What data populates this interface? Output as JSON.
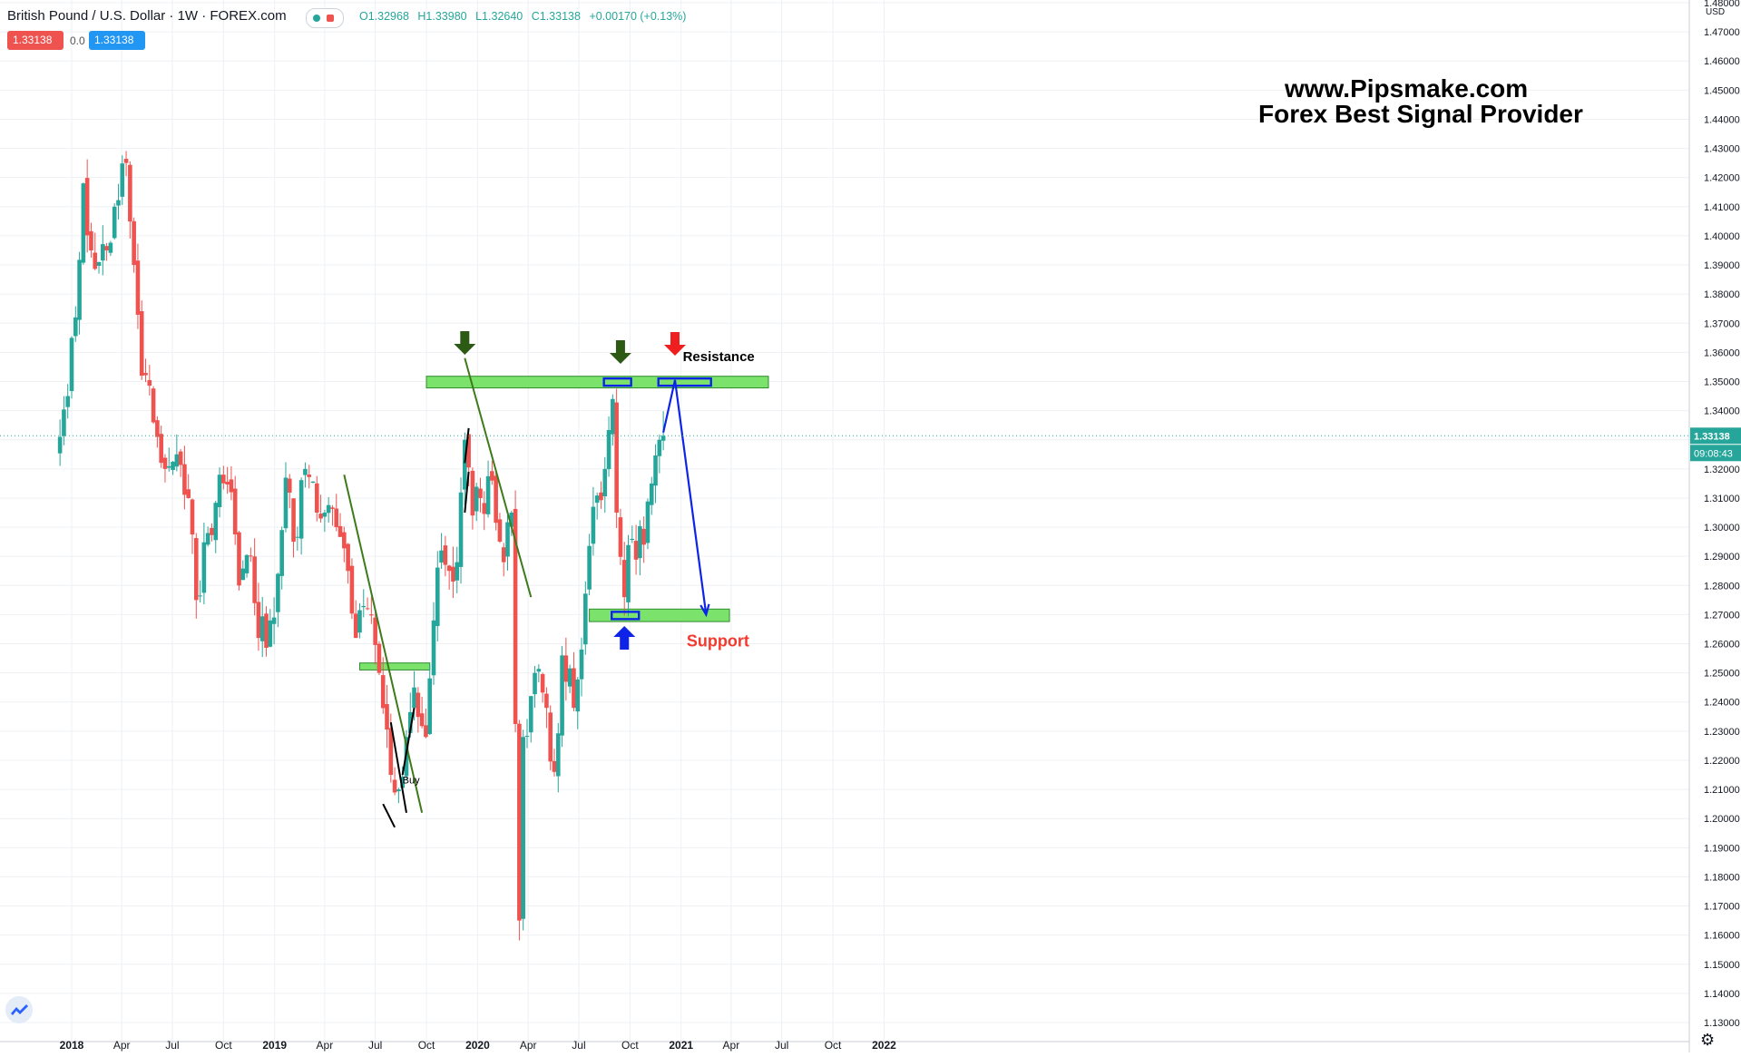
{
  "header": {
    "symbol_title": "British Pound / U.S. Dollar · 1W · FOREX.com",
    "ohlc": {
      "open": "O1.32968",
      "high": "H1.33980",
      "low": "L1.32640",
      "close": "C1.33138",
      "change": "+0.00170 (+0.13%)"
    },
    "sell_price": "1.33138",
    "spread": "0.0",
    "buy_price": "1.33138"
  },
  "overlay_text": {
    "line1": "www.Pipsmake.com",
    "line2": "Forex Best Signal Provider"
  },
  "axis": {
    "currency": "USD",
    "current_price_label": "1.33138",
    "countdown_label": "09:08:43"
  },
  "colors": {
    "up": "#26a69a",
    "down": "#ef5350",
    "zone": "#7be36b",
    "trendline": "#3d7a1a",
    "target_arrow": "#0d24e8",
    "support_text": "#f23a2f"
  },
  "icons": [
    "tradingview-logo-icon",
    "settings-gear-icon",
    "arrow-down-dark-green-icon",
    "arrow-down-red-icon",
    "arrow-up-blue-icon"
  ],
  "chart_data": {
    "type": "candlestick",
    "timeframe": "1W",
    "x_tick_labels": [
      "2018",
      "Apr",
      "Jul",
      "Oct",
      "2019",
      "Apr",
      "Jul",
      "Oct",
      "2020",
      "Apr",
      "Jul",
      "Oct",
      "2021",
      "Apr",
      "Jul",
      "Oct",
      "2022"
    ],
    "y_ticks": [
      "1.48000",
      "1.47000",
      "1.46000",
      "1.45000",
      "1.44000",
      "1.43000",
      "1.42000",
      "1.41000",
      "1.40000",
      "1.39000",
      "1.38000",
      "1.37000",
      "1.36000",
      "1.35000",
      "1.34000",
      "1.33000",
      "1.32000",
      "1.31000",
      "1.30000",
      "1.29000",
      "1.28000",
      "1.27000",
      "1.26000",
      "1.25000",
      "1.24000",
      "1.23000",
      "1.22000",
      "1.21000",
      "1.20000",
      "1.19000",
      "1.18000",
      "1.17000",
      "1.16000",
      "1.15000",
      "1.14000",
      "1.13000"
    ],
    "ylim": [
      1.128,
      1.482
    ],
    "last_price": 1.33138,
    "anchors": [
      [
        "2017-12-11",
        1.331
      ],
      [
        "2017-12-25",
        1.345
      ],
      [
        "2018-01-08",
        1.372
      ],
      [
        "2018-01-22",
        1.418
      ],
      [
        "2018-02-05",
        1.395
      ],
      [
        "2018-02-19",
        1.391
      ],
      [
        "2018-03-05",
        1.395
      ],
      [
        "2018-03-19",
        1.41
      ],
      [
        "2018-04-09",
        1.425
      ],
      [
        "2018-04-23",
        1.39
      ],
      [
        "2018-05-07",
        1.352
      ],
      [
        "2018-05-28",
        1.336
      ],
      [
        "2018-06-18",
        1.32
      ],
      [
        "2018-07-09",
        1.325
      ],
      [
        "2018-07-30",
        1.31
      ],
      [
        "2018-08-13",
        1.275
      ],
      [
        "2018-09-03",
        1.298
      ],
      [
        "2018-09-24",
        1.318
      ],
      [
        "2018-10-15",
        1.312
      ],
      [
        "2018-10-29",
        1.28
      ],
      [
        "2018-11-19",
        1.29
      ],
      [
        "2018-12-03",
        1.262
      ],
      [
        "2018-12-24",
        1.268
      ],
      [
        "2019-01-07",
        1.284
      ],
      [
        "2019-01-21",
        1.317
      ],
      [
        "2019-02-04",
        1.295
      ],
      [
        "2019-02-25",
        1.32
      ],
      [
        "2019-03-18",
        1.305
      ],
      [
        "2019-04-01",
        1.305
      ],
      [
        "2019-04-22",
        1.3
      ],
      [
        "2019-05-13",
        1.285
      ],
      [
        "2019-05-27",
        1.262
      ],
      [
        "2019-06-17",
        1.272
      ],
      [
        "2019-07-08",
        1.25
      ],
      [
        "2019-07-29",
        1.215
      ],
      [
        "2019-08-12",
        1.21
      ],
      [
        "2019-08-26",
        1.228
      ],
      [
        "2019-09-09",
        1.245
      ],
      [
        "2019-09-30",
        1.228
      ],
      [
        "2019-10-14",
        1.268
      ],
      [
        "2019-10-28",
        1.292
      ],
      [
        "2019-11-11",
        1.285
      ],
      [
        "2019-11-25",
        1.288
      ],
      [
        "2019-12-09",
        1.33
      ],
      [
        "2019-12-23",
        1.304
      ],
      [
        "2020-01-06",
        1.31
      ],
      [
        "2020-01-27",
        1.316
      ],
      [
        "2020-02-17",
        1.288
      ],
      [
        "2020-03-02",
        1.305
      ],
      [
        "2020-03-16",
        1.165
      ],
      [
        "2020-03-23",
        1.228
      ],
      [
        "2020-04-13",
        1.25
      ],
      [
        "2020-05-04",
        1.238
      ],
      [
        "2020-05-18",
        1.216
      ],
      [
        "2020-06-01",
        1.256
      ],
      [
        "2020-06-22",
        1.238
      ],
      [
        "2020-07-06",
        1.258
      ],
      [
        "2020-07-27",
        1.307
      ],
      [
        "2020-08-17",
        1.32
      ],
      [
        "2020-08-31",
        1.344
      ],
      [
        "2020-09-07",
        1.305
      ],
      [
        "2020-09-21",
        1.276
      ],
      [
        "2020-10-05",
        1.296
      ],
      [
        "2020-10-26",
        1.294
      ],
      [
        "2020-11-09",
        1.315
      ],
      [
        "2020-11-23",
        1.33
      ],
      [
        "2020-11-30",
        1.33138
      ]
    ],
    "annotations": [
      {
        "type": "zone",
        "label": "Resistance",
        "from": "2019-10-01",
        "to": "2021-06-07",
        "top": 1.3518,
        "bottom": 1.3478
      },
      {
        "type": "zone",
        "label": "Support",
        "from": "2020-07-20",
        "to": "2021-03-29",
        "top": 1.2719,
        "bottom": 1.2676
      },
      {
        "type": "zone",
        "label": "",
        "from": "2019-06-03",
        "to": "2019-10-07",
        "top": 1.2534,
        "bottom": 1.251
      },
      {
        "type": "trendline",
        "from": [
          "2019-05-06",
          1.318
        ],
        "to": [
          "2019-09-23",
          1.202
        ]
      },
      {
        "type": "trendline",
        "from": [
          "2019-12-09",
          1.358
        ],
        "to": [
          "2020-04-06",
          1.276
        ]
      },
      {
        "type": "projection",
        "points": [
          [
            "2020-11-30",
            1.3325
          ],
          [
            "2020-12-21",
            1.3505
          ],
          [
            "2021-02-15",
            1.27
          ]
        ]
      },
      {
        "type": "text",
        "label": "Buy",
        "at": [
          "2019-08-19",
          1.212
        ]
      },
      {
        "type": "text",
        "label": "Resistance",
        "at": [
          "2021-01-04",
          1.357
        ]
      },
      {
        "type": "text",
        "label": "Support",
        "at": [
          "2021-01-11",
          1.259
        ]
      }
    ]
  }
}
